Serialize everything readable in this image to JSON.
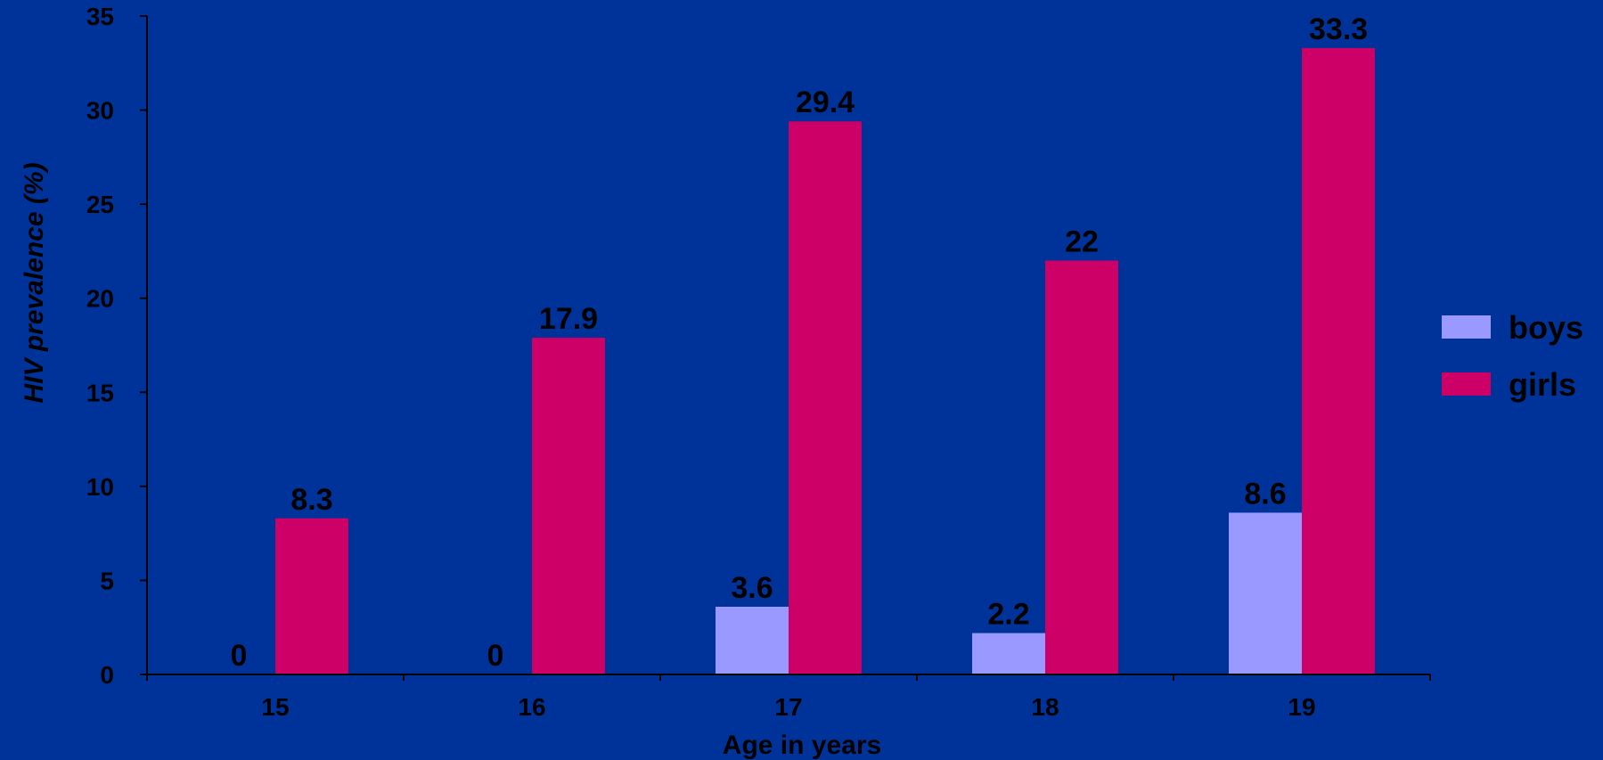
{
  "colors": {
    "background": "#003399",
    "boys": "#9999FF",
    "girls": "#CC0066",
    "axis": "#000000",
    "text": "#000000"
  },
  "chart_data": {
    "type": "bar",
    "categories": [
      "15",
      "16",
      "17",
      "18",
      "19"
    ],
    "series": [
      {
        "name": "boys",
        "values": [
          0,
          0,
          3.6,
          2.2,
          8.6
        ]
      },
      {
        "name": "girls",
        "values": [
          8.3,
          17.9,
          29.4,
          22,
          33.3
        ]
      }
    ],
    "xlabel": "Age in years",
    "ylabel": "HIV prevalence (%)",
    "ylim": [
      0,
      35
    ],
    "yticks": [
      "0",
      "5",
      "10",
      "15",
      "20",
      "25",
      "30",
      "35"
    ],
    "data_labels": [
      [
        "0",
        "0",
        "3.6",
        "2.2",
        "8.6"
      ],
      [
        "8.3",
        "17.9",
        "29.4",
        "22",
        "33.3"
      ]
    ],
    "grid": false,
    "legend": "right"
  }
}
